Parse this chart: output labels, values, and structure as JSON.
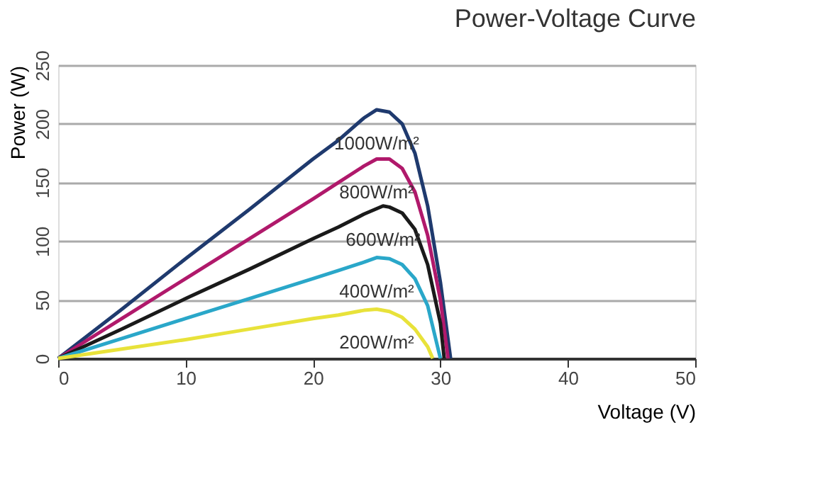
{
  "chart_data": {
    "type": "line",
    "title": "Power-Voltage Curve",
    "xlabel": "Voltage (V)",
    "ylabel": "Power (W)",
    "xlim": [
      0,
      50
    ],
    "xticks": [
      0,
      10,
      20,
      30,
      40,
      50
    ],
    "ylim": [
      0,
      250
    ],
    "yticks": [
      0,
      50,
      100,
      150,
      200,
      250
    ],
    "grid": "y",
    "legend": false,
    "marker": "none",
    "line_style": "solid",
    "series": [
      {
        "name": "1000W/m²",
        "color": "#1f3a6e",
        "x": [
          0,
          5,
          10,
          15,
          20,
          22,
          24,
          25,
          26,
          27,
          28,
          29,
          30,
          30.8
        ],
        "values": [
          0,
          42,
          85,
          127,
          170,
          186,
          205,
          212,
          210,
          200,
          175,
          130,
          65,
          0
        ]
      },
      {
        "name": "800W/m²",
        "color": "#b0196b",
        "x": [
          0,
          5,
          10,
          15,
          20,
          22,
          24,
          25,
          26,
          27,
          28,
          29,
          30,
          30.6
        ],
        "values": [
          0,
          34,
          68,
          102,
          136,
          150,
          164,
          170,
          170,
          162,
          142,
          105,
          50,
          0
        ]
      },
      {
        "name": "600W/m²",
        "color": "#1a1a1a",
        "x": [
          0,
          5,
          10,
          15,
          20,
          22,
          24,
          25.5,
          26,
          27,
          28,
          29,
          30,
          30.3
        ],
        "values": [
          0,
          25,
          51,
          76,
          102,
          112,
          123,
          130,
          129,
          124,
          110,
          80,
          30,
          0
        ]
      },
      {
        "name": "400W/m²",
        "color": "#2aa7c9",
        "x": [
          0,
          5,
          10,
          15,
          20,
          22,
          24,
          25,
          26,
          27,
          28,
          29,
          30
        ],
        "values": [
          0,
          17,
          34,
          51,
          68,
          75,
          82,
          86,
          85,
          80,
          68,
          45,
          0
        ]
      },
      {
        "name": "200W/m²",
        "color": "#e8e23a",
        "x": [
          0,
          5,
          10,
          15,
          20,
          22,
          24,
          25,
          26,
          27,
          28,
          29,
          29.4
        ],
        "values": [
          0,
          8,
          16,
          25,
          34,
          37,
          41,
          42,
          40,
          35,
          25,
          10,
          0
        ]
      }
    ]
  }
}
